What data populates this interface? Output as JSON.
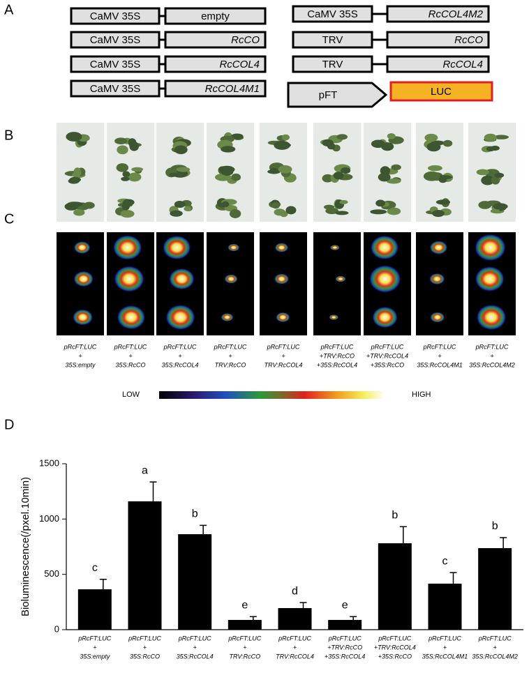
{
  "panels": [
    "A",
    "B",
    "C",
    "D"
  ],
  "constructs_left": [
    {
      "promoter": "CaMV 35S",
      "gene": "empty"
    },
    {
      "promoter": "CaMV 35S",
      "gene": "RcCO"
    },
    {
      "promoter": "CaMV 35S",
      "gene": "RcCOL4"
    },
    {
      "promoter": "CaMV 35S",
      "gene": "RcCOL4M1"
    }
  ],
  "constructs_right": [
    {
      "promoter": "CaMV 35S",
      "gene": "RcCOL4M2"
    },
    {
      "promoter": "TRV",
      "gene": "RcCO"
    },
    {
      "promoter": "TRV",
      "gene": "RcCOL4"
    }
  ],
  "reporter": {
    "promoter": "pFT",
    "gene": "LUC"
  },
  "colorbar": {
    "low": "LOW",
    "high": "HIGH"
  },
  "chart_data": {
    "type": "bar",
    "ylabel": "Bioluminescence(/pxel.10min)",
    "categories": [
      [
        "pRcFT:LUC",
        "+",
        "35S:empty"
      ],
      [
        "pRcFT:LUC",
        "+",
        "35S:RcCO"
      ],
      [
        "pRcFT:LUC",
        "+",
        "35S:RcCOL4"
      ],
      [
        "pRcFT:LUC",
        "+",
        "TRV:RcCO"
      ],
      [
        "pRcFT:LUC",
        "+",
        "TRV:RcCOL4"
      ],
      [
        "pRcFT:LUC",
        "+TRV:RcCO",
        "+35S:RcCOL4"
      ],
      [
        "pRcFT:LUC",
        "+TRV:RcCOL4",
        "+35S:RcCO"
      ],
      [
        "pRcFT:LUC",
        "+",
        "35S:RcCOL4M1"
      ],
      [
        "pRcFT:LUC",
        "+",
        "35S:RcCOL4M2"
      ]
    ],
    "values": [
      365,
      1160,
      863,
      88,
      195,
      88,
      781,
      416,
      737
    ],
    "errors": [
      90,
      175,
      80,
      30,
      50,
      30,
      150,
      100,
      95
    ],
    "annotations": [
      "c",
      "a",
      "b",
      "e",
      "d",
      "e",
      "b",
      "c",
      "b"
    ],
    "color": "#000000",
    "ylim": [
      0,
      1500
    ],
    "yticks": [
      0,
      500,
      1000,
      1500
    ]
  }
}
